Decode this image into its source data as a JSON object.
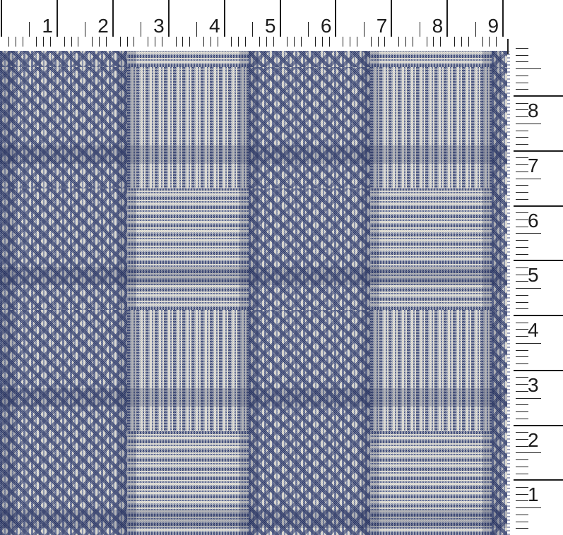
{
  "scene": {
    "description": "Blue and white glen plaid (Prince of Wales) houndstooth check fabric swatch photographed with inch rulers along the top and right edges",
    "background_color": "#ffffff"
  },
  "fabric": {
    "pattern_name": "glen plaid houndstooth check",
    "colors": {
      "navy": "#2e3c70",
      "dark_navy": "#1e2a56",
      "cream": "#e9e6da",
      "slate_blue": "#7e89a9"
    }
  },
  "top_ruler": {
    "orientation": "horizontal",
    "unit": "inch",
    "numbers": [
      "1",
      "2",
      "3",
      "4",
      "5",
      "6",
      "7",
      "8",
      "9"
    ]
  },
  "right_ruler": {
    "orientation": "vertical",
    "unit": "inch",
    "numbers": [
      "8",
      "7",
      "6",
      "5",
      "4",
      "3",
      "2",
      "1"
    ]
  }
}
